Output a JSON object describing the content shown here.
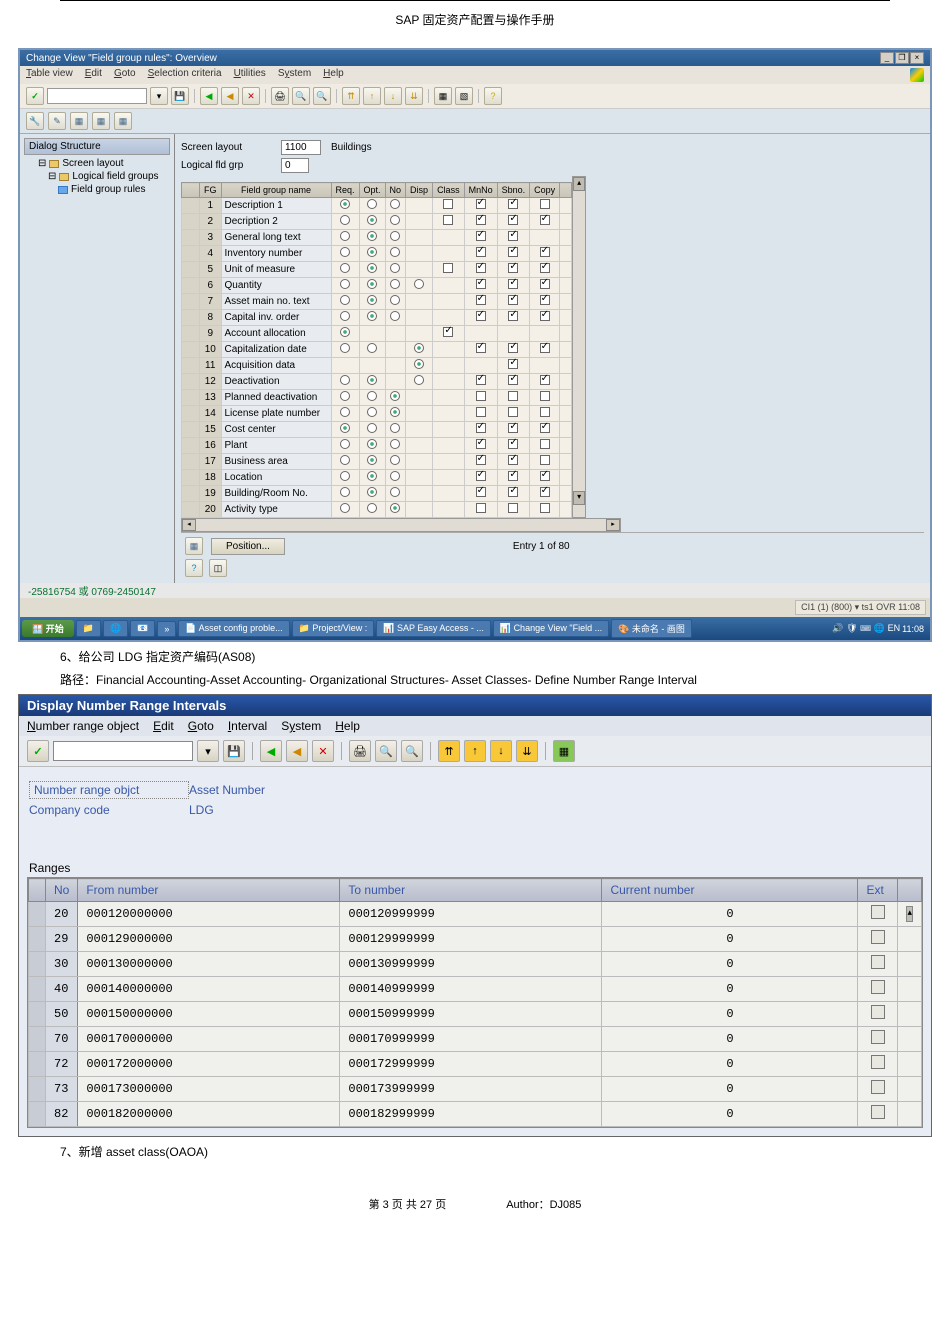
{
  "header": "SAP 固定资产配置与操作手册",
  "window1": {
    "title": "Change View \"Field group rules\": Overview",
    "menu": [
      "Table view",
      "Edit",
      "Goto",
      "Selection criteria",
      "Utilities",
      "System",
      "Help"
    ],
    "tree": {
      "title": "Dialog Structure",
      "items": [
        {
          "label": "Screen layout",
          "lvl": 1
        },
        {
          "label": "Logical field groups",
          "lvl": 2
        },
        {
          "label": "Field group rules",
          "lvl": 3,
          "sel": true
        }
      ]
    },
    "form": {
      "screen_layout_label": "Screen layout",
      "screen_layout_val": "1100",
      "screen_layout_name": "Buildings",
      "logical_grp_label": "Logical fld grp",
      "logical_grp_val": "0"
    },
    "grid": {
      "cols": [
        "FG",
        "Field group name",
        "Req.",
        "Opt.",
        "No",
        "Disp",
        "Class",
        "MnNo",
        "Sbno.",
        "Copy"
      ],
      "rows": [
        {
          "fg": "1",
          "name": "Description 1",
          "req": "on",
          "opt": "off",
          "no": "off",
          "disp": "",
          "class": "c",
          "mnno": "x",
          "sbno": "x",
          "copy": "c"
        },
        {
          "fg": "2",
          "name": "Decription 2",
          "req": "off",
          "opt": "on",
          "no": "off",
          "disp": "",
          "class": "c",
          "mnno": "x",
          "sbno": "x",
          "copy": "x"
        },
        {
          "fg": "3",
          "name": "General long text",
          "req": "off",
          "opt": "on",
          "no": "off",
          "disp": "",
          "class": "",
          "mnno": "x",
          "sbno": "x",
          "copy": ""
        },
        {
          "fg": "4",
          "name": "Inventory number",
          "req": "off",
          "opt": "on",
          "no": "off",
          "disp": "",
          "class": "",
          "mnno": "x",
          "sbno": "x",
          "copy": "x"
        },
        {
          "fg": "5",
          "name": "Unit of measure",
          "req": "off",
          "opt": "on",
          "no": "off",
          "disp": "",
          "class": "c",
          "mnno": "x",
          "sbno": "x",
          "copy": "x"
        },
        {
          "fg": "6",
          "name": "Quantity",
          "req": "off",
          "opt": "on",
          "no": "off",
          "disp": "off",
          "class": "",
          "mnno": "x",
          "sbno": "x",
          "copy": "x"
        },
        {
          "fg": "7",
          "name": "Asset main no. text",
          "req": "off",
          "opt": "on",
          "no": "off",
          "disp": "",
          "class": "",
          "mnno": "x",
          "sbno": "x",
          "copy": "x"
        },
        {
          "fg": "8",
          "name": "Capital inv. order",
          "req": "off",
          "opt": "on",
          "no": "off",
          "disp": "",
          "class": "",
          "mnno": "x",
          "sbno": "x",
          "copy": "x"
        },
        {
          "fg": "9",
          "name": "Account allocation",
          "req": "on",
          "opt": "",
          "no": "",
          "disp": "",
          "class": "x",
          "mnno": "",
          "sbno": "",
          "copy": ""
        },
        {
          "fg": "10",
          "name": "Capitalization date",
          "req": "off",
          "opt": "off",
          "no": "",
          "disp": "on",
          "class": "",
          "mnno": "x",
          "sbno": "x",
          "copy": "x"
        },
        {
          "fg": "11",
          "name": "Acquisition data",
          "req": "",
          "opt": "",
          "no": "",
          "disp": "on",
          "class": "",
          "mnno": "",
          "sbno": "x",
          "copy": ""
        },
        {
          "fg": "12",
          "name": "Deactivation",
          "req": "off",
          "opt": "on",
          "no": "",
          "disp": "off",
          "class": "",
          "mnno": "x",
          "sbno": "x",
          "copy": "x"
        },
        {
          "fg": "13",
          "name": "Planned deactivation",
          "req": "off",
          "opt": "off",
          "no": "on",
          "disp": "",
          "class": "",
          "mnno": "c",
          "sbno": "c",
          "copy": "c"
        },
        {
          "fg": "14",
          "name": "License plate number",
          "req": "off",
          "opt": "off",
          "no": "on",
          "disp": "",
          "class": "",
          "mnno": "c",
          "sbno": "c",
          "copy": "c"
        },
        {
          "fg": "15",
          "name": "Cost center",
          "req": "on",
          "opt": "off",
          "no": "off",
          "disp": "",
          "class": "",
          "mnno": "x",
          "sbno": "x",
          "copy": "x"
        },
        {
          "fg": "16",
          "name": "Plant",
          "req": "off",
          "opt": "on",
          "no": "off",
          "disp": "",
          "class": "",
          "mnno": "x",
          "sbno": "x",
          "copy": "c"
        },
        {
          "fg": "17",
          "name": "Business area",
          "req": "off",
          "opt": "on",
          "no": "off",
          "disp": "",
          "class": "",
          "mnno": "x",
          "sbno": "x",
          "copy": "c"
        },
        {
          "fg": "18",
          "name": "Location",
          "req": "off",
          "opt": "on",
          "no": "off",
          "disp": "",
          "class": "",
          "mnno": "x",
          "sbno": "x",
          "copy": "x"
        },
        {
          "fg": "19",
          "name": "Building/Room No.",
          "req": "off",
          "opt": "on",
          "no": "off",
          "disp": "",
          "class": "",
          "mnno": "x",
          "sbno": "x",
          "copy": "x"
        },
        {
          "fg": "20",
          "name": "Activity type",
          "req": "off",
          "opt": "off",
          "no": "on",
          "disp": "",
          "class": "",
          "mnno": "c",
          "sbno": "c",
          "copy": "c"
        }
      ]
    },
    "position_btn": "Position...",
    "entry_text": "Entry 1 of 80",
    "status_left": "-25816754 或 0769-2450147",
    "status_right": "CI1 (1) (800) ▾ ts1 OVR   11:08",
    "taskbar": {
      "start": "开始",
      "items": [
        "Asset config proble...",
        "Project/View :",
        "SAP Easy Access - ...",
        "Change View \"Field ...",
        "未命名 - 画图"
      ],
      "time": "11:08"
    }
  },
  "text_6": "6、给公司 LDG 指定资产编码(AS08)",
  "text_path": "路径：Financial Accounting-Asset Accounting- Organizational Structures- Asset Classes- Define Number Range Interval",
  "window2": {
    "title": "Display Number Range Intervals",
    "menu": [
      "Number range object",
      "Edit",
      "Goto",
      "Interval",
      "System",
      "Help"
    ],
    "form": {
      "obj_label": "Number range objct",
      "obj_val": "Asset Number",
      "comp_label": "Company code",
      "comp_val": "LDG"
    },
    "ranges_title": "Ranges",
    "ranges": {
      "cols": [
        "No",
        "From number",
        "To number",
        "Current number",
        "Ext"
      ],
      "rows": [
        {
          "no": "20",
          "from": "000120000000",
          "to": "000120999999",
          "cur": "0"
        },
        {
          "no": "29",
          "from": "000129000000",
          "to": "000129999999",
          "cur": "0"
        },
        {
          "no": "30",
          "from": "000130000000",
          "to": "000130999999",
          "cur": "0"
        },
        {
          "no": "40",
          "from": "000140000000",
          "to": "000140999999",
          "cur": "0"
        },
        {
          "no": "50",
          "from": "000150000000",
          "to": "000150999999",
          "cur": "0"
        },
        {
          "no": "70",
          "from": "000170000000",
          "to": "000170999999",
          "cur": "0"
        },
        {
          "no": "72",
          "from": "000172000000",
          "to": "000172999999",
          "cur": "0"
        },
        {
          "no": "73",
          "from": "000173000000",
          "to": "000173999999",
          "cur": "0"
        },
        {
          "no": "82",
          "from": "000182000000",
          "to": "000182999999",
          "cur": "0"
        }
      ]
    }
  },
  "text_7": "7、新增 asset class(OAOA)",
  "footer": {
    "page": "第 3 页 共 27 页",
    "author": "Author：DJ085"
  }
}
